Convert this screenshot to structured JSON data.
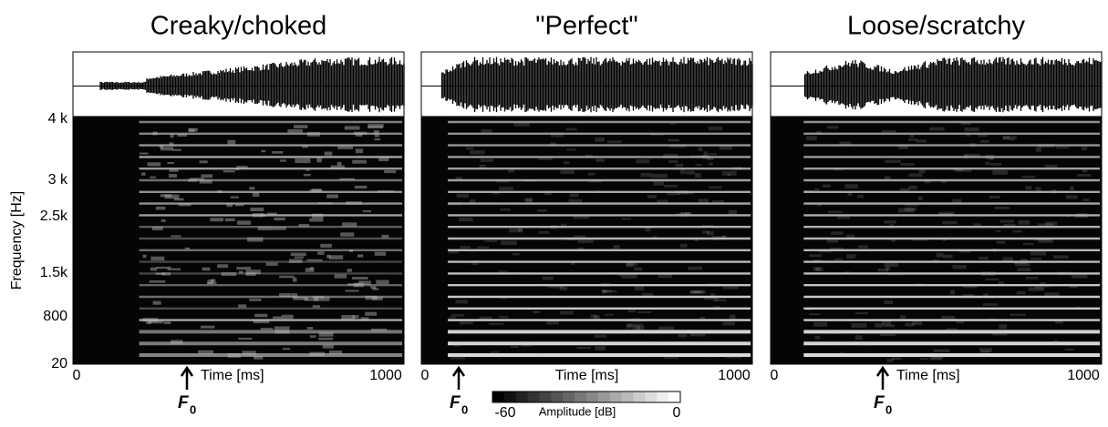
{
  "panels": [
    {
      "title": "Creaky/choked",
      "x_start": "0",
      "x_end": "1000",
      "x_label": "Time [ms]"
    },
    {
      "title": "\"Perfect\"",
      "x_start": "0",
      "x_end": "1000",
      "x_label": "Time [ms]"
    },
    {
      "title": "Loose/scratchy",
      "x_start": "0",
      "x_end": "1000",
      "x_label": "Time [ms]"
    }
  ],
  "y_axis": {
    "label": "Frequency [Hz]",
    "ticks": [
      "4 k",
      "3 k",
      "2.5k",
      "1.5k",
      "800",
      "20"
    ]
  },
  "f0_label": {
    "symbol": "F",
    "subscript": "0"
  },
  "colorbar": {
    "min_label": "-60",
    "label": "Amplitude [dB]",
    "max_label": "0"
  }
}
